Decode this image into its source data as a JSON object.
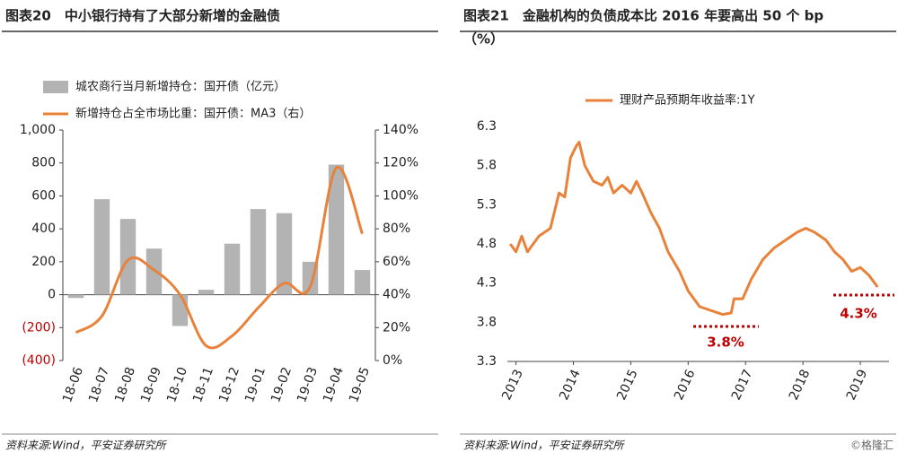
{
  "chart_data": [
    {
      "type": "bar_line",
      "title": "图表20　中小银行持有了大部分新增的金融债",
      "categories": [
        "18-06",
        "18-07",
        "18-08",
        "18-09",
        "18-10",
        "18-11",
        "18-12",
        "19-01",
        "19-02",
        "19-03",
        "19-04",
        "19-05"
      ],
      "series": [
        {
          "name": "城农商行当月新增持仓：国开债（亿元）",
          "color": "#b3b3b3",
          "kind": "bar",
          "values": [
            -20,
            580,
            460,
            280,
            -190,
            30,
            310,
            520,
            495,
            200,
            790,
            150
          ]
        },
        {
          "name": "新增持仓占全市场比重：国开债：MA3（右）",
          "color": "#e8823a",
          "kind": "line",
          "axis": "y2",
          "values": [
            17,
            27,
            61,
            55,
            40,
            9,
            15,
            32,
            47,
            45,
            117,
            77
          ]
        }
      ],
      "ylim": [
        -400,
        1000
      ],
      "yticks": [
        {
          "value": -400,
          "label": "(400)"
        },
        {
          "value": -200,
          "label": "(200)"
        },
        0,
        200,
        400,
        600,
        800,
        {
          "value": 1000,
          "label": "1,000"
        }
      ],
      "y2lim": [
        0,
        140
      ],
      "y2ticks": [
        {
          "value": 0,
          "label": "0%"
        },
        {
          "value": 20,
          "label": "20%"
        },
        {
          "value": 40,
          "label": "40%"
        },
        {
          "value": 60,
          "label": "60%"
        },
        {
          "value": 80,
          "label": "80%"
        },
        {
          "value": 100,
          "label": "100%"
        },
        {
          "value": 120,
          "label": "120%"
        },
        {
          "value": 140,
          "label": "140%"
        }
      ],
      "negative_tick_color": "#c00000",
      "source": "资料来源:Wind，平安证券研究所"
    },
    {
      "type": "line",
      "title": "图表21　金融机构的负债成本比 2016 年要高出 50 个 bp",
      "subtitle": "（%）",
      "x": [
        2012.9,
        2013.0,
        2013.1,
        2013.2,
        2013.4,
        2013.6,
        2013.75,
        2013.85,
        2013.95,
        2014.05,
        2014.1,
        2014.2,
        2014.35,
        2014.5,
        2014.6,
        2014.7,
        2014.85,
        2015.0,
        2015.1,
        2015.2,
        2015.35,
        2015.5,
        2015.65,
        2015.85,
        2016.0,
        2016.2,
        2016.4,
        2016.6,
        2016.75,
        2016.8,
        2016.95,
        2017.1,
        2017.3,
        2017.5,
        2017.7,
        2017.9,
        2018.05,
        2018.2,
        2018.4,
        2018.55,
        2018.7,
        2018.85,
        2019.0,
        2019.15,
        2019.3
      ],
      "series": [
        {
          "name": "理财产品预期年收益率:1Y",
          "color": "#e8823a",
          "values": [
            4.8,
            4.7,
            4.9,
            4.7,
            4.9,
            5.0,
            5.45,
            5.4,
            5.9,
            6.05,
            6.1,
            5.8,
            5.6,
            5.55,
            5.65,
            5.45,
            5.55,
            5.45,
            5.6,
            5.45,
            5.2,
            5.0,
            4.7,
            4.45,
            4.2,
            4.0,
            3.95,
            3.9,
            3.92,
            4.1,
            4.1,
            4.35,
            4.6,
            4.75,
            4.85,
            4.95,
            5.0,
            4.95,
            4.85,
            4.7,
            4.6,
            4.45,
            4.5,
            4.4,
            4.25
          ]
        }
      ],
      "xlim": [
        2012.85,
        2019.5
      ],
      "xticks": [
        2013,
        2014,
        2015,
        2016,
        2017,
        2018,
        2019
      ],
      "ylim": [
        3.3,
        6.3
      ],
      "yticks": [
        3.3,
        3.8,
        4.3,
        4.8,
        5.3,
        5.8,
        6.3
      ],
      "annotations": [
        {
          "text": "3.8%",
          "color": "#c00000"
        },
        {
          "text": "4.3%",
          "color": "#c00000"
        }
      ],
      "source": "资料来源:Wind，平安证券研究所",
      "watermark": "©格隆汇"
    }
  ]
}
